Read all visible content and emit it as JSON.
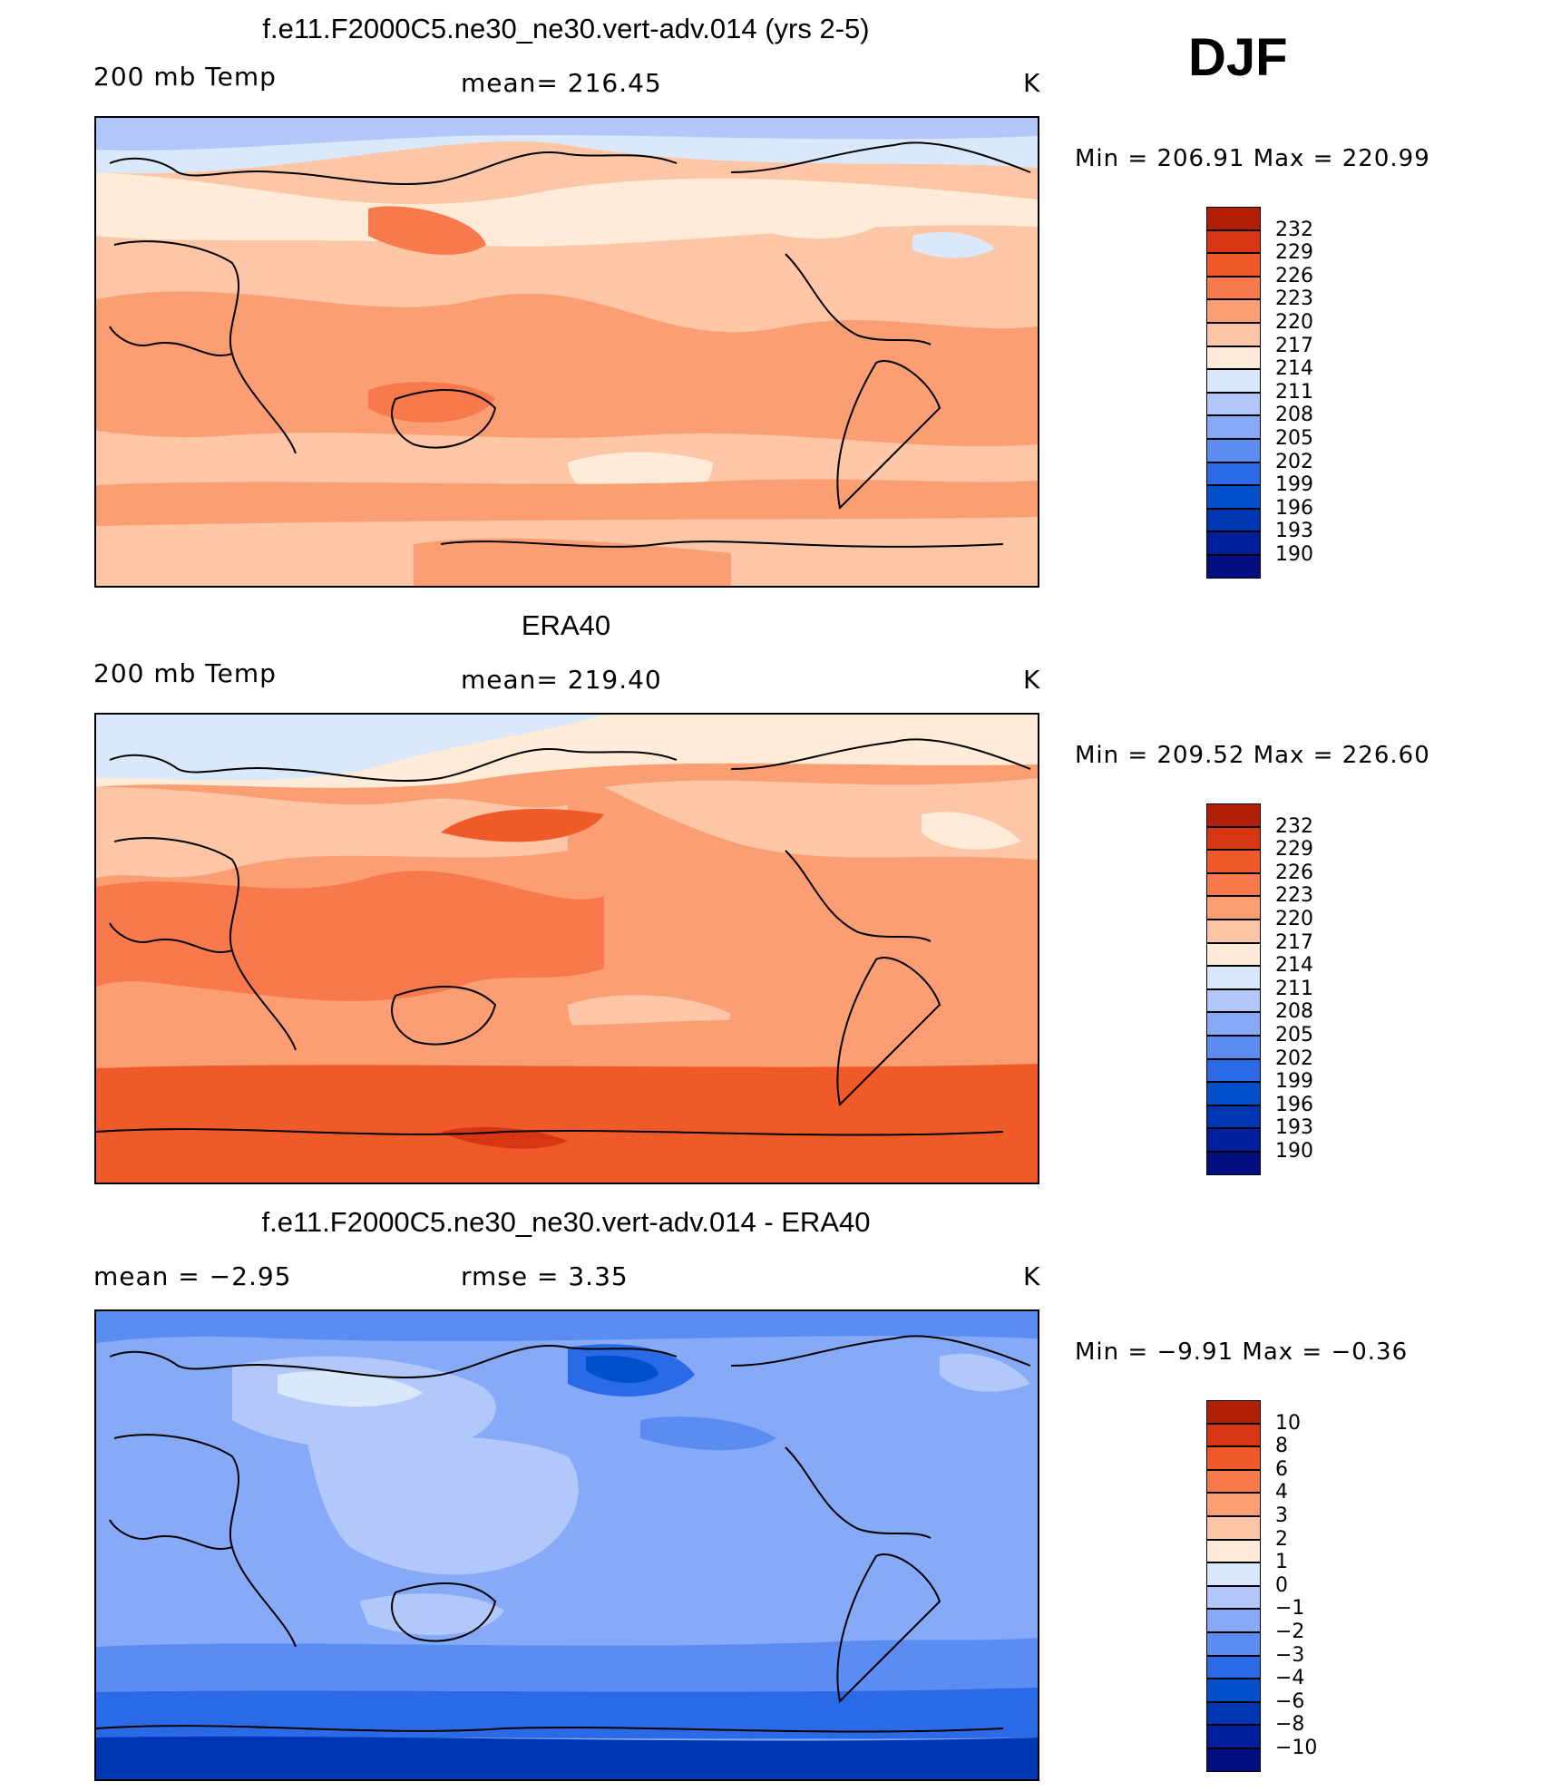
{
  "season": "DJF",
  "panels": [
    {
      "title": "f.e11.F2000C5.ne30_ne30.vert-adv.014 (yrs 2-5)",
      "left_label": "200 mb Temp",
      "center_label": "mean=  216.45",
      "units": "K",
      "min_max": "Min  =  206.91  Max  =  220.99"
    },
    {
      "title": "ERA40",
      "left_label": "200 mb Temp",
      "center_label": "mean=  219.40",
      "units": "K",
      "min_max": "Min  =  209.52  Max  =  226.60"
    },
    {
      "title": "f.e11.F2000C5.ne30_ne30.vert-adv.014 - ERA40",
      "left_label": "mean  =    −2.95",
      "center_label": "rmse  =    3.35",
      "units": "K",
      "min_max": "Min  =   −9.91  Max  =   −0.36"
    }
  ],
  "colorbars": [
    {
      "colors": [
        "#000e80",
        "#001e99",
        "#0036b4",
        "#0050cc",
        "#2a6ae6",
        "#5a8cf2",
        "#86aaf8",
        "#b2c8fa",
        "#d9e9fb",
        "#ffecd8",
        "#fdc6a6",
        "#fc9e74",
        "#f87a4c",
        "#f05a28",
        "#d83612",
        "#b01e06",
        "#820a00"
      ],
      "labels": [
        "190",
        "193",
        "196",
        "199",
        "202",
        "205",
        "208",
        "211",
        "214",
        "217",
        "220",
        "223",
        "226",
        "229",
        "232"
      ]
    },
    {
      "colors": [
        "#000e80",
        "#001e99",
        "#0036b4",
        "#0050cc",
        "#2a6ae6",
        "#5a8cf2",
        "#86aaf8",
        "#b2c8fa",
        "#d9e9fb",
        "#ffecd8",
        "#fdc6a6",
        "#fc9e74",
        "#f87a4c",
        "#f05a28",
        "#d83612",
        "#b01e06",
        "#820a00"
      ],
      "labels": [
        "190",
        "193",
        "196",
        "199",
        "202",
        "205",
        "208",
        "211",
        "214",
        "217",
        "220",
        "223",
        "226",
        "229",
        "232"
      ]
    },
    {
      "colors": [
        "#000e80",
        "#001e99",
        "#0036b4",
        "#0050cc",
        "#2a6ae6",
        "#5a8cf2",
        "#86aaf8",
        "#b2c8fa",
        "#d9e9fb",
        "#ffecd8",
        "#fdc6a6",
        "#fc9e74",
        "#f87a4c",
        "#f05a28",
        "#d83612",
        "#b01e06",
        "#820a00"
      ],
      "labels": [
        "−10",
        "−8",
        "−6",
        "−4",
        "−3",
        "−2",
        "−1",
        "0",
        "1",
        "2",
        "3",
        "4",
        "6",
        "8",
        "10"
      ]
    }
  ],
  "chart_data": [
    {
      "type": "heatmap",
      "title": "f.e11.F2000C5.ne30_ne30.vert-adv.014 (yrs 2-5)",
      "variable": "200 mb Temp",
      "units": "K",
      "mean": 216.45,
      "min": 206.91,
      "max": 220.99,
      "contour_levels": [
        190,
        193,
        196,
        199,
        202,
        205,
        208,
        211,
        214,
        217,
        220,
        223,
        226,
        229,
        232
      ]
    },
    {
      "type": "heatmap",
      "title": "ERA40",
      "variable": "200 mb Temp",
      "units": "K",
      "mean": 219.4,
      "min": 209.52,
      "max": 226.6,
      "contour_levels": [
        190,
        193,
        196,
        199,
        202,
        205,
        208,
        211,
        214,
        217,
        220,
        223,
        226,
        229,
        232
      ]
    },
    {
      "type": "heatmap",
      "title": "f.e11.F2000C5.ne30_ne30.vert-adv.014 - ERA40",
      "units": "K",
      "mean": -2.95,
      "rmse": 3.35,
      "min": -9.91,
      "max": -0.36,
      "contour_levels": [
        -10,
        -8,
        -6,
        -4,
        -3,
        -2,
        -1,
        0,
        1,
        2,
        3,
        4,
        6,
        8,
        10
      ]
    }
  ]
}
